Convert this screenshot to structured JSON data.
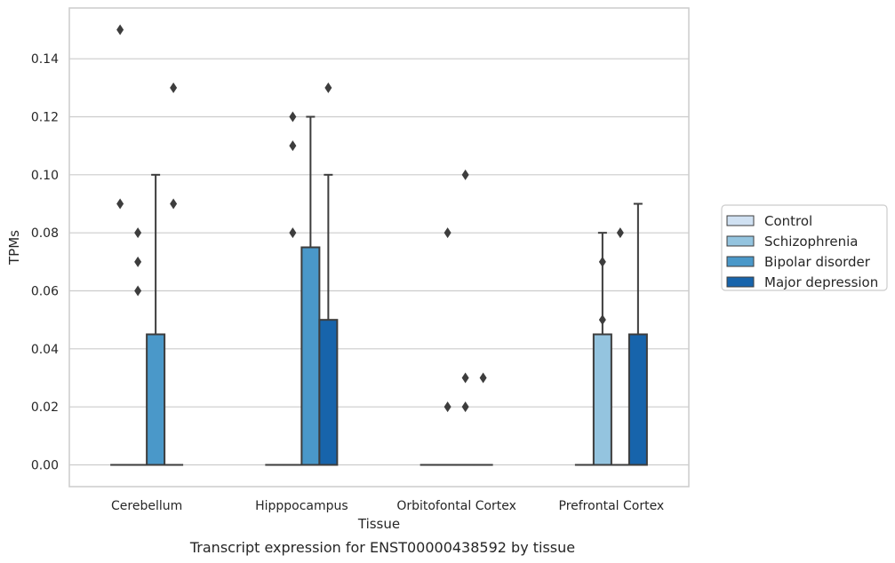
{
  "chart_data": {
    "type": "box",
    "xlabel": "Tissue",
    "ylabel": "TPMs",
    "caption": "Transcript expression for ENST00000438592 by tissue",
    "ylim": [
      -0.0075,
      0.1575
    ],
    "yticks": [
      0.0,
      0.02,
      0.04,
      0.06,
      0.08,
      0.1,
      0.12,
      0.14
    ],
    "ytick_labels": [
      "0.00",
      "0.02",
      "0.04",
      "0.06",
      "0.08",
      "0.10",
      "0.12",
      "0.14"
    ],
    "grid": "horizontal",
    "legend_position": "right",
    "categories": [
      "Cerebellum",
      "Hipppocampus",
      "Orbitofontal Cortex",
      "Prefrontal Cortex"
    ],
    "series": [
      {
        "name": "Control",
        "color": "#d0e1f2",
        "boxes": [
          {
            "q1": 0,
            "median": 0,
            "q3": 0,
            "whisker_low": 0,
            "whisker_high": 0,
            "outliers": [
              0.15,
              0.09
            ]
          },
          {
            "q1": 0,
            "median": 0,
            "q3": 0,
            "whisker_low": 0,
            "whisker_high": 0,
            "outliers": []
          },
          {
            "q1": 0,
            "median": 0,
            "q3": 0,
            "whisker_low": 0,
            "whisker_high": 0,
            "outliers": []
          },
          {
            "q1": 0,
            "median": 0,
            "q3": 0,
            "whisker_low": 0,
            "whisker_high": 0,
            "outliers": []
          }
        ]
      },
      {
        "name": "Schizophrenia",
        "color": "#94c4df",
        "boxes": [
          {
            "q1": 0,
            "median": 0,
            "q3": 0,
            "whisker_low": 0,
            "whisker_high": 0,
            "outliers": [
              0.08,
              0.07,
              0.06
            ]
          },
          {
            "q1": 0,
            "median": 0,
            "q3": 0,
            "whisker_low": 0,
            "whisker_high": 0,
            "outliers": [
              0.12,
              0.11,
              0.08
            ]
          },
          {
            "q1": 0,
            "median": 0,
            "q3": 0,
            "whisker_low": 0,
            "whisker_high": 0,
            "outliers": [
              0.08,
              0.02
            ]
          },
          {
            "q1": 0,
            "median": 0,
            "q3": 0.045,
            "whisker_low": 0,
            "whisker_high": 0.08,
            "outliers": [
              0.07,
              0.05
            ]
          }
        ]
      },
      {
        "name": "Bipolar disorder",
        "color": "#4a98c9",
        "boxes": [
          {
            "q1": 0,
            "median": 0,
            "q3": 0.045,
            "whisker_low": 0,
            "whisker_high": 0.1,
            "outliers": []
          },
          {
            "q1": 0,
            "median": 0,
            "q3": 0.075,
            "whisker_low": 0,
            "whisker_high": 0.12,
            "outliers": []
          },
          {
            "q1": 0,
            "median": 0,
            "q3": 0,
            "whisker_low": 0,
            "whisker_high": 0,
            "outliers": [
              0.1,
              0.02,
              0.03
            ]
          },
          {
            "q1": 0,
            "median": 0,
            "q3": 0,
            "whisker_low": 0,
            "whisker_high": 0,
            "outliers": [
              0.08
            ]
          }
        ]
      },
      {
        "name": "Major depression",
        "color": "#1764ab",
        "boxes": [
          {
            "q1": 0,
            "median": 0,
            "q3": 0,
            "whisker_low": 0,
            "whisker_high": 0,
            "outliers": [
              0.13,
              0.09
            ]
          },
          {
            "q1": 0,
            "median": 0,
            "q3": 0.05,
            "whisker_low": 0,
            "whisker_high": 0.1,
            "outliers": [
              0.13
            ]
          },
          {
            "q1": 0,
            "median": 0,
            "q3": 0,
            "whisker_low": 0,
            "whisker_high": 0,
            "outliers": [
              0.03
            ]
          },
          {
            "q1": 0,
            "median": 0,
            "q3": 0.045,
            "whisker_low": 0,
            "whisker_high": 0.09,
            "outliers": []
          }
        ]
      }
    ]
  }
}
